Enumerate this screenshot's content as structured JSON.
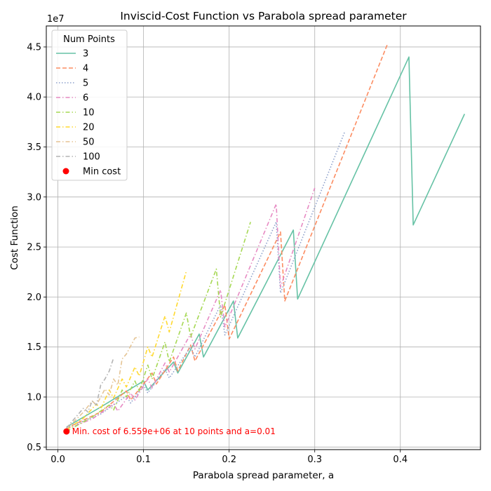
{
  "chart_data": {
    "type": "line",
    "title": "Inviscid-Cost Function vs Parabola spread parameter",
    "xlabel": "Parabola spread parameter, a",
    "ylabel": "Cost Function",
    "y_offset_text": "1e7",
    "y_scale_exponent": 7,
    "xlim": [
      -0.0136,
      0.4936
    ],
    "ylim": [
      4.74,
      47.1
    ],
    "x_ticks": [
      0.0,
      0.1,
      0.2,
      0.3,
      0.4
    ],
    "x_tick_labels": [
      "0.0",
      "0.1",
      "0.2",
      "0.3",
      "0.4"
    ],
    "y_ticks": [
      5,
      10,
      15,
      20,
      25,
      30,
      35,
      40,
      45
    ],
    "y_tick_labels": [
      "0.5",
      "1.0",
      "1.5",
      "2.0",
      "2.5",
      "3.0",
      "3.5",
      "4.0",
      "4.5"
    ],
    "grid": true,
    "legend": {
      "title": "Num Points",
      "position": "top-left",
      "min_cost_label": "Min cost"
    },
    "series": [
      {
        "name": "3",
        "color": "#66c2a5",
        "dash": "solid",
        "x": [
          0.01,
          0.05,
          0.1,
          0.105,
          0.135,
          0.14,
          0.165,
          0.17,
          0.205,
          0.21,
          0.275,
          0.28,
          0.41,
          0.415,
          0.475
        ],
        "y": [
          7.0,
          9.0,
          11.6,
          10.7,
          13.5,
          12.4,
          16.3,
          14.0,
          19.6,
          15.9,
          26.7,
          19.8,
          44.0,
          27.2,
          38.3
        ]
      },
      {
        "name": "4",
        "color": "#fc8d62",
        "dash": "dashed",
        "x": [
          0.01,
          0.05,
          0.08,
          0.085,
          0.11,
          0.115,
          0.135,
          0.14,
          0.155,
          0.16,
          0.195,
          0.2,
          0.26,
          0.265,
          0.385
        ],
        "y": [
          6.9,
          8.5,
          10.6,
          9.7,
          12.4,
          11.3,
          14.0,
          12.6,
          15.2,
          13.6,
          19.2,
          15.8,
          26.5,
          19.6,
          45.3
        ]
      },
      {
        "name": "5",
        "color": "#8da0cb",
        "dash": "dotted",
        "x": [
          0.01,
          0.05,
          0.08,
          0.085,
          0.1,
          0.105,
          0.125,
          0.13,
          0.155,
          0.16,
          0.19,
          0.195,
          0.255,
          0.26,
          0.335
        ],
        "y": [
          6.9,
          8.3,
          10.1,
          9.4,
          11.2,
          10.4,
          12.8,
          11.9,
          15.0,
          14.0,
          19.2,
          16.2,
          27.5,
          20.4,
          36.5
        ]
      },
      {
        "name": "6",
        "color": "#e78ac3",
        "dash": "dashdot",
        "x": [
          0.01,
          0.04,
          0.065,
          0.07,
          0.085,
          0.09,
          0.105,
          0.11,
          0.125,
          0.13,
          0.155,
          0.16,
          0.19,
          0.195,
          0.255,
          0.26,
          0.3
        ],
        "y": [
          6.8,
          7.8,
          9.3,
          8.6,
          10.4,
          9.7,
          11.8,
          10.9,
          13.4,
          12.5,
          16.3,
          14.8,
          20.7,
          17.0,
          29.3,
          21.0,
          30.9
        ]
      },
      {
        "name": "10",
        "color": "#a6d854",
        "dash": "dashdot",
        "x": [
          0.01,
          0.04,
          0.06,
          0.065,
          0.075,
          0.08,
          0.09,
          0.095,
          0.105,
          0.11,
          0.125,
          0.13,
          0.15,
          0.155,
          0.185,
          0.19,
          0.225
        ],
        "y": [
          6.56,
          8.0,
          9.2,
          8.7,
          10.7,
          10.0,
          11.6,
          10.6,
          13.2,
          11.8,
          15.5,
          13.5,
          18.4,
          16.0,
          22.8,
          18.0,
          27.5
        ]
      },
      {
        "name": "20",
        "color": "#ffd92f",
        "dash": "dashdot",
        "x": [
          0.01,
          0.03,
          0.045,
          0.05,
          0.06,
          0.065,
          0.075,
          0.08,
          0.09,
          0.095,
          0.105,
          0.11,
          0.125,
          0.13,
          0.15
        ],
        "y": [
          6.7,
          7.9,
          9.3,
          8.8,
          10.7,
          9.9,
          11.8,
          11.0,
          13.0,
          12.1,
          15.0,
          14.0,
          18.1,
          16.5,
          22.6
        ]
      },
      {
        "name": "50",
        "color": "#e5c494",
        "dash": "dashdot",
        "x": [
          0.01,
          0.03,
          0.04,
          0.045,
          0.055,
          0.06,
          0.065,
          0.07,
          0.075,
          0.08,
          0.09,
          0.095
        ],
        "y": [
          6.8,
          8.5,
          9.6,
          9.2,
          10.8,
          10.2,
          11.8,
          11.2,
          13.8,
          14.3,
          15.9,
          16.0
        ]
      },
      {
        "name": "100",
        "color": "#b3b3b3",
        "dash": "dashdot",
        "x": [
          0.01,
          0.02,
          0.03,
          0.035,
          0.04,
          0.045,
          0.05,
          0.055,
          0.06,
          0.065
        ],
        "y": [
          6.9,
          7.9,
          8.9,
          8.5,
          9.6,
          9.2,
          11.2,
          11.8,
          12.6,
          13.9
        ]
      }
    ],
    "min_cost": {
      "x": 0.01,
      "y": 6.559,
      "color": "#ff0000",
      "annotation": "Min. cost of 6.559e+06 at 10 points and a=0.01"
    }
  }
}
